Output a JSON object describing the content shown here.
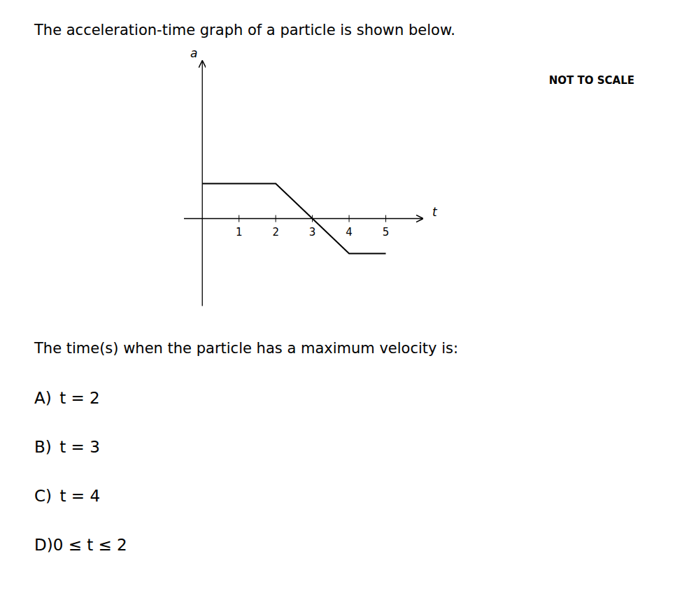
{
  "chart_data": {
    "type": "line",
    "title": "The acceleration-time graph of a particle is shown below.",
    "x_label": "t",
    "y_label": "a",
    "x": [
      0,
      2,
      3,
      4,
      5
    ],
    "values": [
      1,
      1,
      0,
      -1,
      -1
    ],
    "color": "#000000",
    "xlim": [
      -0.5,
      6.0
    ],
    "ylim": [
      -2.5,
      4.5
    ],
    "xticks": [
      1,
      2,
      3,
      4,
      5
    ],
    "tick_labels": "x",
    "grid": false,
    "annotations": [
      "NOT TO SCALE",
      "The time(s) when the particle has a maximum velocity is:",
      "A) t = 2",
      "B) t = 3",
      "C) t = 4",
      "D)0 ≤ t ≤ 2"
    ]
  }
}
